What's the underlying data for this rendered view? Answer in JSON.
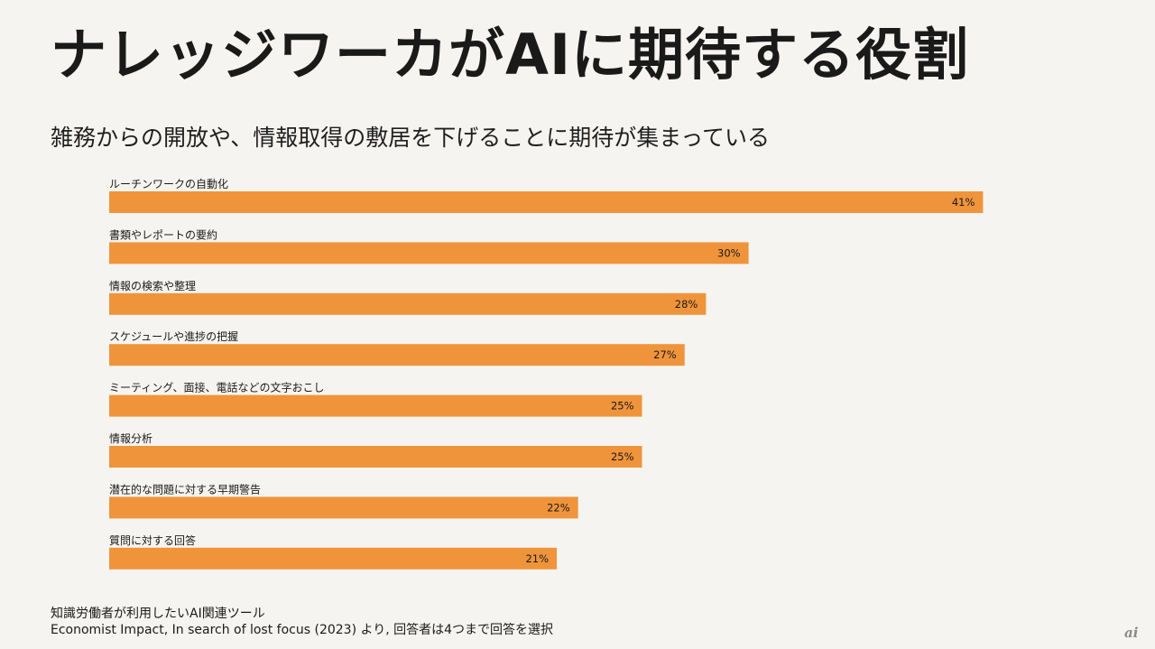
{
  "title": "ナレッジワーカがAIに期待する役割",
  "subtitle": "雑務からの開放や、情報取得の敷居を下げることに期待が集まっている",
  "chart_data": {
    "type": "bar",
    "orientation": "horizontal",
    "categories": [
      "ルーチンワークの自動化",
      "書類やレポートの要約",
      "情報の検索や整理",
      "スケジュールや進捗の把握",
      "ミーティング、面接、電話などの文字おこし",
      "情報分析",
      "潜在的な問題に対する早期警告",
      "質問に対する回答"
    ],
    "values": [
      41,
      30,
      28,
      27,
      25,
      25,
      22,
      21
    ],
    "value_labels": [
      "41%",
      "30%",
      "28%",
      "27%",
      "25%",
      "25%",
      "22%",
      "21%"
    ],
    "unit": "%",
    "xlim": [
      0,
      45
    ],
    "grid": false,
    "legend": "none",
    "bar_color": "#f0943b"
  },
  "footer": {
    "line1": "知識労働者が利用したいAI関連ツール",
    "line2": "Economist Impact, In search of lost focus (2023) より, 回答者は4つまで回答を選択"
  },
  "logo": {
    "text": "ai"
  }
}
